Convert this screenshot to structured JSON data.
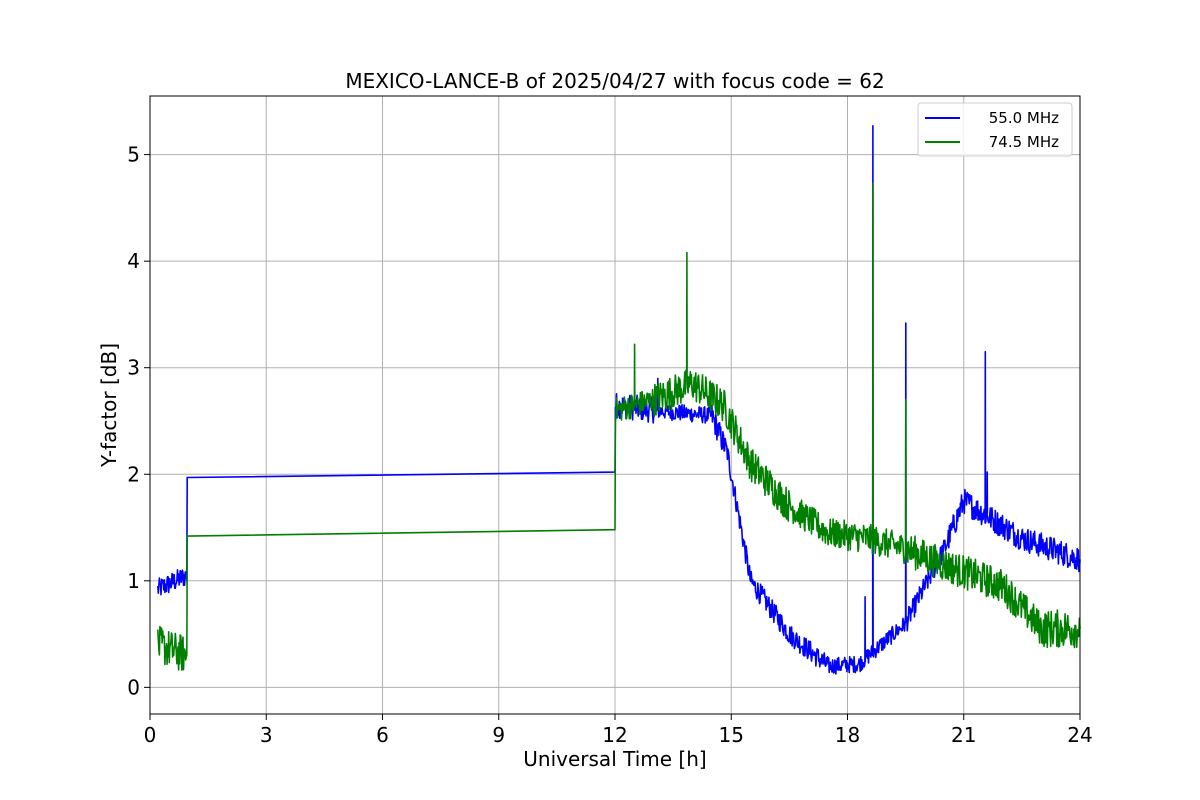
{
  "chart_data": {
    "type": "line",
    "title": "MEXICO-LANCE-B of 2025/04/27 with focus code = 62",
    "xlabel": "Universal Time [h]",
    "ylabel": "Y-factor [dB]",
    "xlim": [
      0,
      24
    ],
    "ylim": [
      -0.25,
      5.55
    ],
    "xticks": [
      0,
      3,
      6,
      9,
      12,
      15,
      18,
      21,
      24
    ],
    "yticks": [
      0,
      1,
      2,
      3,
      4,
      5
    ],
    "grid": true,
    "legend_position": "top-right",
    "series": [
      {
        "name": "55.0 MHz",
        "color": "#0000ff",
        "noise": [
          0.1,
          0.1,
          0,
          0,
          0,
          0.12,
          0.08,
          0.12,
          0.1,
          0.1,
          0.1,
          0.08,
          0.08,
          0.1,
          0.12,
          0.12,
          0.12
        ],
        "x": [
          0.2,
          0.95,
          0.96,
          0.98,
          12.0,
          12.01,
          13.0,
          14.5,
          14.9,
          15.5,
          16.5,
          17.5,
          18.3,
          19.5,
          20.5,
          21.0,
          22.5,
          24.0
        ],
        "y": [
          0.92,
          1.05,
          1.97,
          1.97,
          2.02,
          2.65,
          2.6,
          2.55,
          2.2,
          1.0,
          0.5,
          0.2,
          0.22,
          0.6,
          1.3,
          1.75,
          1.4,
          1.2
        ],
        "spikes": [
          [
            18.45,
            0.85
          ],
          [
            18.65,
            5.27
          ],
          [
            19.5,
            3.42
          ],
          [
            21.55,
            3.15
          ],
          [
            21.6,
            2.02
          ],
          [
            13.1,
            2.9
          ]
        ]
      },
      {
        "name": "74.5 MHz",
        "color": "#008000",
        "noise": [
          0.18,
          0.18,
          0,
          0,
          0,
          0.12,
          0.16,
          0.16,
          0.16,
          0.16,
          0.14,
          0.14,
          0.14,
          0.16,
          0.16,
          0.16,
          0.18
        ],
        "x": [
          0.2,
          0.95,
          0.96,
          0.98,
          12.0,
          12.01,
          13.0,
          14.0,
          14.8,
          15.5,
          16.5,
          17.5,
          18.5,
          19.5,
          20.5,
          22.0,
          23.0,
          24.0
        ],
        "y": [
          0.4,
          0.3,
          1.42,
          1.42,
          1.48,
          2.6,
          2.7,
          2.85,
          2.65,
          2.1,
          1.7,
          1.45,
          1.4,
          1.3,
          1.15,
          0.95,
          0.55,
          0.55
        ],
        "spikes": [
          [
            13.85,
            4.08
          ],
          [
            18.65,
            4.73
          ],
          [
            19.5,
            2.7
          ],
          [
            12.5,
            3.22
          ]
        ]
      }
    ]
  }
}
